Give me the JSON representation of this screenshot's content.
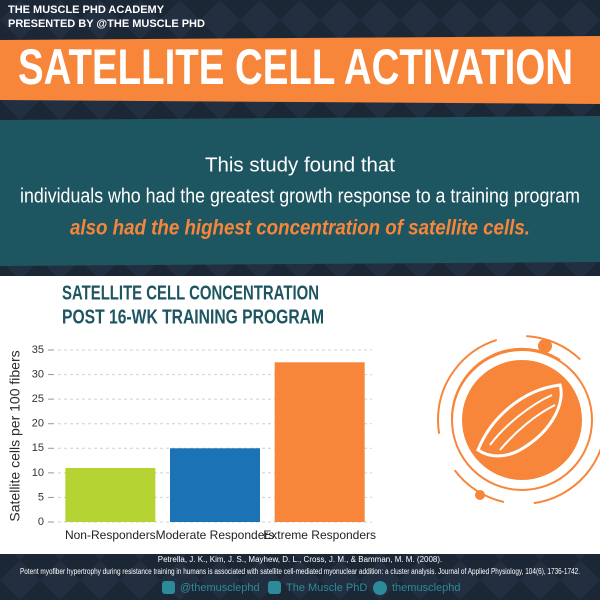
{
  "header": {
    "academy": "THE MUSCLE PHD ACADEMY",
    "presented_by": "PRESENTED BY @THE MUSCLE PHD",
    "title": "SATELLITE CELL ACTIVATION"
  },
  "intro": {
    "line1": "This study found that",
    "line2": "individuals who had the greatest growth response to a training program",
    "highlight": "also had the highest concentration of satellite cells."
  },
  "chart_data": {
    "type": "bar",
    "title": "SATELLITE CELL CONCENTRATION",
    "subtitle": "POST 16-WK TRAINING PROGRAM",
    "y_label": "Satellite cells per 100 fibers",
    "categories": [
      "Non-Responders",
      "Moderate Responders",
      "Extreme Responders"
    ],
    "values": [
      11,
      15,
      32.5
    ],
    "colors": [
      "#b6d334",
      "#1b72b5",
      "#f7863a"
    ],
    "ylim": [
      0,
      35
    ],
    "yticks": [
      0,
      5,
      10,
      15,
      20,
      25,
      30,
      35
    ],
    "grid": true
  },
  "citation": {
    "line1": "Petrella, J. K., Kim, J. S., Mayhew, D. L., Cross, J. M., & Bamman, M. M. (2008).",
    "line2": "Potent myofiber hypertrophy during resistance training in humans is associated with satellite cell-mediated myonuclear addition: a cluster analysis. Journal of Applied Physiology, 104(6), 1736-1742."
  },
  "social": {
    "instagram": "@themusclephd",
    "facebook": "The Muscle PhD",
    "pinterest": "themusclephd"
  }
}
